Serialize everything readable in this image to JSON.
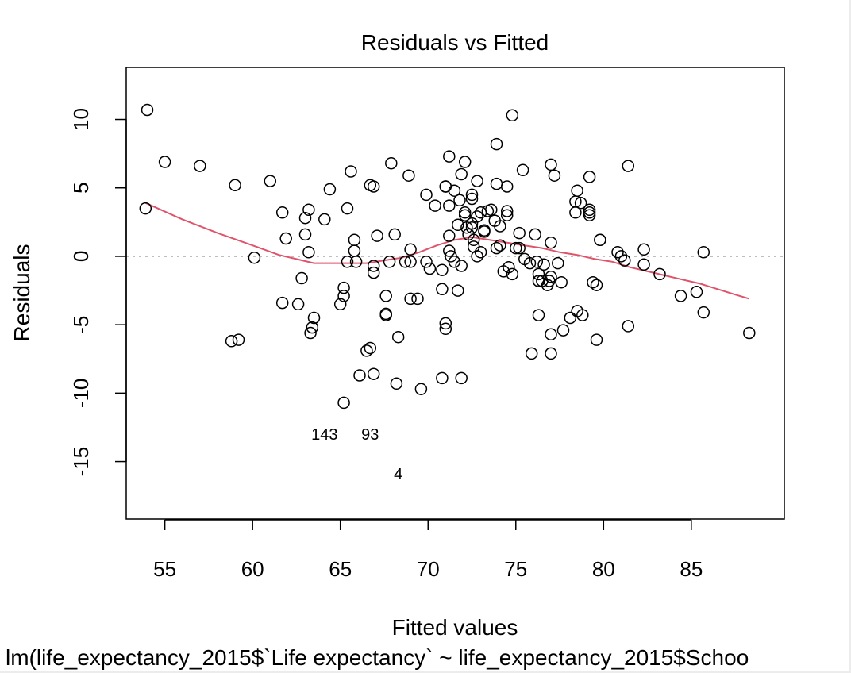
{
  "chart_data": {
    "type": "scatter",
    "title": "Residuals vs Fitted",
    "xlabel": "Fitted values",
    "ylabel": "Residuals",
    "subtitle": "lm(life_expectancy_2015$`Life expectancy` ~ life_expectancy_2015$Schoo",
    "xlim": [
      52.8,
      90.3
    ],
    "ylim": [
      -19.2,
      13.8
    ],
    "xticks": [
      55,
      60,
      65,
      70,
      75,
      80,
      85
    ],
    "yticks": [
      -15,
      -10,
      -5,
      0,
      5,
      10
    ],
    "grid": false,
    "legend": "none",
    "reference_line": {
      "y": 0,
      "style": "dotted",
      "color": "#bebebe"
    },
    "series": [
      {
        "points": [
          [
            54.0,
            10.7
          ],
          [
            53.9,
            3.5
          ],
          [
            55.0,
            6.9
          ],
          [
            57.0,
            6.6
          ],
          [
            59.0,
            5.2
          ],
          [
            61.0,
            5.5
          ],
          [
            58.8,
            -6.2
          ],
          [
            59.2,
            -6.1
          ],
          [
            60.1,
            -0.1
          ],
          [
            61.7,
            3.2
          ],
          [
            61.9,
            1.3
          ],
          [
            61.7,
            -3.4
          ],
          [
            62.6,
            -3.5
          ],
          [
            62.8,
            -1.6
          ],
          [
            63.0,
            2.8
          ],
          [
            63.0,
            1.6
          ],
          [
            63.2,
            3.4
          ],
          [
            63.2,
            0.3
          ],
          [
            63.3,
            -5.6
          ],
          [
            63.4,
            -5.2
          ],
          [
            63.5,
            -4.5
          ],
          [
            64.1,
            2.7
          ],
          [
            64.4,
            4.9
          ],
          [
            65.0,
            -3.5
          ],
          [
            65.2,
            -2.3
          ],
          [
            65.2,
            -2.9
          ],
          [
            65.2,
            -10.7
          ],
          [
            65.4,
            -0.4
          ],
          [
            65.4,
            3.5
          ],
          [
            65.6,
            6.2
          ],
          [
            65.8,
            1.2
          ],
          [
            65.8,
            0.4
          ],
          [
            65.9,
            -0.4
          ],
          [
            66.1,
            -8.7
          ],
          [
            66.5,
            -6.9
          ],
          [
            66.7,
            -6.7
          ],
          [
            66.7,
            5.2
          ],
          [
            66.9,
            5.1
          ],
          [
            66.9,
            -0.7
          ],
          [
            66.9,
            -1.2
          ],
          [
            66.9,
            -8.6
          ],
          [
            67.1,
            1.5
          ],
          [
            67.6,
            -2.9
          ],
          [
            67.6,
            -4.2
          ],
          [
            67.6,
            -4.3
          ],
          [
            67.8,
            -0.4
          ],
          [
            67.9,
            6.8
          ],
          [
            68.1,
            1.6
          ],
          [
            68.2,
            -9.3
          ],
          [
            68.3,
            -5.9
          ],
          [
            68.7,
            -0.4
          ],
          [
            68.9,
            5.9
          ],
          [
            69.0,
            0.5
          ],
          [
            69.0,
            -0.4
          ],
          [
            69.0,
            -3.1
          ],
          [
            69.4,
            -3.1
          ],
          [
            69.6,
            -9.7
          ],
          [
            69.9,
            4.5
          ],
          [
            69.9,
            -0.4
          ],
          [
            70.1,
            -0.9
          ],
          [
            70.4,
            3.7
          ],
          [
            70.8,
            -1.0
          ],
          [
            70.8,
            -2.4
          ],
          [
            70.8,
            -8.9
          ],
          [
            71.0,
            5.1
          ],
          [
            71.0,
            5.1
          ],
          [
            71.0,
            -4.9
          ],
          [
            71.0,
            -5.3
          ],
          [
            71.2,
            7.3
          ],
          [
            71.2,
            3.7
          ],
          [
            71.2,
            1.5
          ],
          [
            71.2,
            0.4
          ],
          [
            71.3,
            0.0
          ],
          [
            71.5,
            4.8
          ],
          [
            71.5,
            -0.4
          ],
          [
            71.7,
            2.3
          ],
          [
            71.7,
            -2.5
          ],
          [
            71.8,
            4.1
          ],
          [
            71.9,
            6.0
          ],
          [
            71.9,
            -0.7
          ],
          [
            71.9,
            -8.9
          ],
          [
            72.1,
            6.9
          ],
          [
            72.1,
            3.2
          ],
          [
            72.1,
            3.0
          ],
          [
            72.2,
            2.1
          ],
          [
            72.3,
            1.6
          ],
          [
            72.5,
            4.5
          ],
          [
            72.5,
            4.2
          ],
          [
            72.5,
            2.4
          ],
          [
            72.5,
            2.1
          ],
          [
            72.6,
            1.2
          ],
          [
            72.6,
            0.7
          ],
          [
            72.8,
            5.5
          ],
          [
            72.8,
            2.9
          ],
          [
            72.8,
            0.0
          ],
          [
            73.0,
            3.2
          ],
          [
            73.0,
            0.3
          ],
          [
            73.2,
            1.9
          ],
          [
            73.2,
            1.8
          ],
          [
            73.4,
            3.3
          ],
          [
            73.6,
            3.4
          ],
          [
            73.8,
            2.6
          ],
          [
            73.9,
            8.2
          ],
          [
            73.9,
            5.3
          ],
          [
            73.9,
            0.6
          ],
          [
            74.1,
            2.2
          ],
          [
            74.1,
            0.8
          ],
          [
            74.3,
            -1.1
          ],
          [
            74.5,
            5.1
          ],
          [
            74.5,
            3.3
          ],
          [
            74.5,
            3.0
          ],
          [
            74.6,
            -0.8
          ],
          [
            74.8,
            10.3
          ],
          [
            74.8,
            -1.3
          ],
          [
            75.0,
            0.6
          ],
          [
            75.2,
            1.7
          ],
          [
            75.2,
            0.6
          ],
          [
            75.4,
            6.3
          ],
          [
            75.5,
            -0.2
          ],
          [
            75.8,
            -0.5
          ],
          [
            75.9,
            -7.1
          ],
          [
            76.1,
            1.6
          ],
          [
            76.2,
            -0.4
          ],
          [
            76.3,
            -4.3
          ],
          [
            76.3,
            -1.3
          ],
          [
            76.3,
            -1.8
          ],
          [
            76.5,
            -1.8
          ],
          [
            76.6,
            -0.6
          ],
          [
            76.8,
            -2.1
          ],
          [
            76.9,
            -1.8
          ],
          [
            77.0,
            6.7
          ],
          [
            77.0,
            1.0
          ],
          [
            77.0,
            -1.5
          ],
          [
            77.0,
            -5.7
          ],
          [
            77.0,
            -7.1
          ],
          [
            77.2,
            5.9
          ],
          [
            77.4,
            -0.5
          ],
          [
            77.6,
            -1.9
          ],
          [
            77.7,
            -5.4
          ],
          [
            78.1,
            -4.5
          ],
          [
            78.4,
            4.0
          ],
          [
            78.4,
            3.2
          ],
          [
            78.5,
            4.8
          ],
          [
            78.5,
            -4.0
          ],
          [
            78.7,
            3.9
          ],
          [
            78.8,
            -4.3
          ],
          [
            79.2,
            5.8
          ],
          [
            79.2,
            3.4
          ],
          [
            79.2,
            3.0
          ],
          [
            79.2,
            3.2
          ],
          [
            79.4,
            -1.9
          ],
          [
            79.6,
            -2.1
          ],
          [
            79.6,
            -6.1
          ],
          [
            79.8,
            1.2
          ],
          [
            79.8,
            1.2
          ],
          [
            80.8,
            0.3
          ],
          [
            81.0,
            0.0
          ],
          [
            81.2,
            -0.3
          ],
          [
            81.4,
            6.6
          ],
          [
            81.4,
            -5.1
          ],
          [
            82.3,
            0.5
          ],
          [
            82.3,
            -0.6
          ],
          [
            83.2,
            -1.3
          ],
          [
            84.4,
            -2.9
          ],
          [
            85.3,
            -2.6
          ],
          [
            85.7,
            0.3
          ],
          [
            85.7,
            -4.1
          ],
          [
            88.3,
            -5.6
          ]
        ]
      }
    ],
    "labeled_points": [
      {
        "x": 64.1,
        "y": -13.0,
        "label": "143"
      },
      {
        "x": 66.7,
        "y": -13.0,
        "label": "93"
      },
      {
        "x": 68.3,
        "y": -15.9,
        "label": "4"
      }
    ],
    "smooth_line": {
      "color": "#df536b",
      "points": [
        [
          53.9,
          3.9
        ],
        [
          56.0,
          2.7
        ],
        [
          58.0,
          1.7
        ],
        [
          60.0,
          0.8
        ],
        [
          61.5,
          0.1
        ],
        [
          62.5,
          -0.2
        ],
        [
          63.5,
          -0.5
        ],
        [
          64.5,
          -0.5
        ],
        [
          65.5,
          -0.5
        ],
        [
          66.5,
          -0.5
        ],
        [
          67.5,
          -0.3
        ],
        [
          68.5,
          -0.1
        ],
        [
          69.5,
          0.3
        ],
        [
          70.5,
          0.8
        ],
        [
          71.5,
          1.2
        ],
        [
          72.5,
          1.4
        ],
        [
          73.5,
          1.2
        ],
        [
          74.5,
          1.0
        ],
        [
          75.5,
          0.8
        ],
        [
          76.5,
          0.6
        ],
        [
          77.5,
          0.3
        ],
        [
          78.5,
          0.1
        ],
        [
          79.5,
          -0.2
        ],
        [
          80.5,
          -0.4
        ],
        [
          81.5,
          -0.8
        ],
        [
          82.5,
          -1.1
        ],
        [
          83.5,
          -1.4
        ],
        [
          84.5,
          -1.7
        ],
        [
          85.5,
          -2.0
        ],
        [
          86.5,
          -2.4
        ],
        [
          87.5,
          -2.8
        ],
        [
          88.3,
          -3.1
        ]
      ]
    }
  }
}
